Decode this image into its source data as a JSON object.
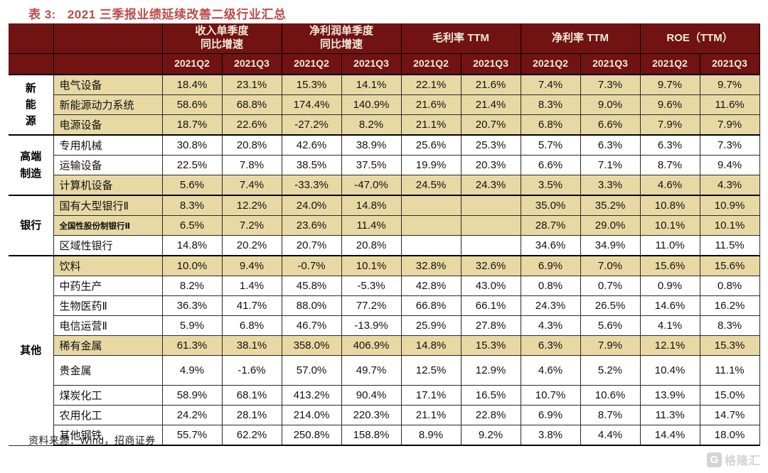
{
  "title": {
    "prefix": "表 3:",
    "text": "2021 三季报业绩延续改善二级行业汇总"
  },
  "header": {
    "metric_groups": [
      "收入单季度\n同比增速",
      "净利润单季度\n同比增速",
      "毛利率 TTM",
      "净利率 TTM",
      "ROE（TTM）"
    ],
    "quarters": [
      "2021Q2",
      "2021Q3"
    ]
  },
  "groups": [
    {
      "name": "新能源",
      "name_display": "新\n能\n源",
      "rows": [
        {
          "industry": "电气设备",
          "highlight": true,
          "small_font": false,
          "tall": false,
          "values": [
            "18.4%",
            "23.1%",
            "15.3%",
            "14.1%",
            "22.1%",
            "21.6%",
            "7.4%",
            "7.3%",
            "9.7%",
            "9.7%"
          ]
        },
        {
          "industry": "新能源动力系统",
          "highlight": true,
          "small_font": false,
          "tall": false,
          "values": [
            "58.6%",
            "68.8%",
            "174.4%",
            "140.9%",
            "21.6%",
            "21.4%",
            "8.3%",
            "9.0%",
            "9.6%",
            "11.6%"
          ]
        },
        {
          "industry": "电源设备",
          "highlight": true,
          "small_font": false,
          "tall": false,
          "values": [
            "18.7%",
            "22.6%",
            "-27.2%",
            "8.2%",
            "21.1%",
            "20.7%",
            "6.8%",
            "6.6%",
            "7.9%",
            "7.9%"
          ]
        }
      ]
    },
    {
      "name": "高端制造",
      "name_display": "高端\n制造",
      "rows": [
        {
          "industry": "专用机械",
          "highlight": false,
          "small_font": false,
          "tall": false,
          "values": [
            "30.8%",
            "20.8%",
            "42.6%",
            "38.9%",
            "25.6%",
            "25.3%",
            "5.7%",
            "6.3%",
            "6.3%",
            "7.3%"
          ]
        },
        {
          "industry": "运输设备",
          "highlight": false,
          "small_font": false,
          "tall": false,
          "values": [
            "22.5%",
            "7.8%",
            "38.5%",
            "37.5%",
            "19.9%",
            "20.3%",
            "6.6%",
            "7.1%",
            "8.7%",
            "9.4%"
          ]
        },
        {
          "industry": "计算机设备",
          "highlight": true,
          "small_font": false,
          "tall": false,
          "values": [
            "5.6%",
            "7.4%",
            "-33.3%",
            "-47.0%",
            "24.5%",
            "24.3%",
            "3.5%",
            "3.3%",
            "4.6%",
            "4.3%"
          ]
        }
      ]
    },
    {
      "name": "银行",
      "name_display": "银行",
      "rows": [
        {
          "industry": "国有大型银行Ⅱ",
          "highlight": true,
          "small_font": false,
          "tall": false,
          "values": [
            "8.3%",
            "12.2%",
            "24.0%",
            "14.8%",
            "",
            "",
            "35.0%",
            "35.2%",
            "10.8%",
            "10.9%"
          ]
        },
        {
          "industry": "全国性股份制银行Ⅱ",
          "highlight": true,
          "small_font": true,
          "tall": false,
          "values": [
            "6.5%",
            "7.2%",
            "23.6%",
            "11.4%",
            "",
            "",
            "28.7%",
            "29.0%",
            "10.1%",
            "10.1%"
          ]
        },
        {
          "industry": "区域性银行",
          "highlight": false,
          "small_font": false,
          "tall": false,
          "values": [
            "14.8%",
            "20.2%",
            "20.7%",
            "20.8%",
            "",
            "",
            "34.6%",
            "34.9%",
            "11.0%",
            "11.5%"
          ]
        }
      ]
    },
    {
      "name": "其他",
      "name_display": "其他",
      "rows": [
        {
          "industry": "饮料",
          "highlight": true,
          "small_font": false,
          "tall": false,
          "values": [
            "10.0%",
            "9.4%",
            "-0.7%",
            "10.1%",
            "32.8%",
            "32.6%",
            "6.9%",
            "7.0%",
            "15.6%",
            "15.6%"
          ]
        },
        {
          "industry": "中药生产",
          "highlight": false,
          "small_font": false,
          "tall": false,
          "values": [
            "8.2%",
            "1.4%",
            "45.8%",
            "-5.3%",
            "42.8%",
            "43.0%",
            "0.8%",
            "0.7%",
            "0.9%",
            "0.8%"
          ]
        },
        {
          "industry": "生物医药Ⅱ",
          "highlight": false,
          "small_font": false,
          "tall": false,
          "values": [
            "36.3%",
            "41.7%",
            "88.0%",
            "77.2%",
            "66.8%",
            "66.1%",
            "24.3%",
            "26.5%",
            "14.6%",
            "16.2%"
          ]
        },
        {
          "industry": "电信运营Ⅱ",
          "highlight": false,
          "small_font": false,
          "tall": false,
          "values": [
            "5.9%",
            "6.8%",
            "46.7%",
            "-13.9%",
            "25.9%",
            "27.8%",
            "4.3%",
            "5.6%",
            "4.1%",
            "8.3%"
          ]
        },
        {
          "industry": "稀有金属",
          "highlight": true,
          "small_font": false,
          "tall": false,
          "values": [
            "61.3%",
            "38.1%",
            "358.0%",
            "406.9%",
            "14.8%",
            "15.3%",
            "6.3%",
            "7.9%",
            "12.1%",
            "15.3%"
          ]
        },
        {
          "industry": "贵金属",
          "highlight": false,
          "small_font": false,
          "tall": true,
          "values": [
            "4.9%",
            "-1.6%",
            "57.0%",
            "49.7%",
            "12.5%",
            "12.9%",
            "4.6%",
            "5.2%",
            "10.4%",
            "11.1%"
          ]
        },
        {
          "industry": "煤炭化工",
          "highlight": false,
          "small_font": false,
          "tall": false,
          "values": [
            "58.9%",
            "68.1%",
            "413.2%",
            "90.4%",
            "17.1%",
            "16.5%",
            "10.7%",
            "10.6%",
            "13.9%",
            "15.0%"
          ]
        },
        {
          "industry": "农用化工",
          "highlight": false,
          "small_font": false,
          "tall": false,
          "values": [
            "24.2%",
            "28.1%",
            "214.0%",
            "220.3%",
            "21.1%",
            "22.8%",
            "6.9%",
            "8.7%",
            "11.3%",
            "14.7%"
          ]
        },
        {
          "industry": "其他钢铁",
          "highlight": false,
          "small_font": false,
          "tall": false,
          "values": [
            "55.7%",
            "62.2%",
            "250.8%",
            "158.8%",
            "8.9%",
            "9.2%",
            "3.8%",
            "4.4%",
            "14.4%",
            "18.0%"
          ]
        }
      ]
    }
  ],
  "footer": {
    "source": "资料来源：Wind，招商证券"
  },
  "watermark": {
    "icon_letter": "G",
    "text": "格隆汇"
  },
  "colors": {
    "header_bg": "#701312",
    "header_text": "#F2E9DC",
    "highlight_row": "#E8D9A4",
    "title_text": "#BE4B48",
    "border": "#000000",
    "watermark": "#D4D4D4"
  }
}
